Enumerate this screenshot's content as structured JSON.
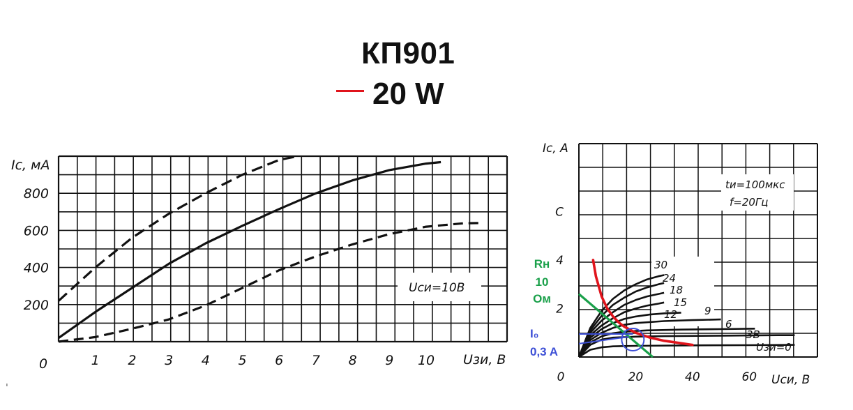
{
  "header": {
    "title": "КП901",
    "power_label": "20 W",
    "power_color": "#e0141c"
  },
  "stray_mark": "ˌ",
  "chart_data": [
    {
      "type": "line",
      "xlabel": "Uзи, B",
      "ylabel": "Iс, мA",
      "x_ticks": [
        "1",
        "2",
        "3",
        "4",
        "5",
        "6",
        "7",
        "8",
        "9",
        "10"
      ],
      "y_ticks": [
        "200",
        "400",
        "600",
        "800"
      ],
      "origin_label": "0",
      "xlim": [
        0,
        12.2
      ],
      "ylim": [
        0,
        1000
      ],
      "grid": true,
      "annotation": "Uси=10B",
      "series": [
        {
          "style": "dashed-long",
          "x": [
            0,
            1,
            2,
            3,
            4,
            5,
            6,
            6.5
          ],
          "y": [
            220,
            400,
            560,
            690,
            800,
            900,
            980,
            1000
          ]
        },
        {
          "style": "solid",
          "x": [
            0,
            1,
            2,
            3,
            4,
            5,
            6,
            7,
            8,
            9,
            10,
            10.4
          ],
          "y": [
            20,
            160,
            290,
            420,
            530,
            625,
            715,
            800,
            870,
            925,
            960,
            968
          ]
        },
        {
          "style": "dashed",
          "x": [
            0,
            1,
            2,
            3,
            4,
            5,
            6,
            7,
            8,
            9,
            10,
            11,
            11.5
          ],
          "y": [
            0,
            25,
            70,
            120,
            195,
            290,
            385,
            460,
            525,
            580,
            620,
            638,
            640
          ]
        }
      ]
    },
    {
      "type": "line",
      "xlabel": "Uси, B",
      "ylabel": "Iс, A",
      "x_ticks": [
        "20",
        "40",
        "60"
      ],
      "y_ticks": [
        "2",
        "4",
        "C"
      ],
      "origin_label": "0",
      "xlim": [
        0,
        84
      ],
      "ylim": [
        0,
        8.8
      ],
      "grid": true,
      "annotation_lines": [
        "tи=100мкс",
        "f=20Гц"
      ],
      "curve_labels": [
        "30",
        "24",
        "18",
        "15",
        "12",
        "9",
        "6",
        "3B",
        "Uзи=0"
      ],
      "series": [
        {
          "label": "30",
          "x": [
            0,
            4,
            8,
            12,
            16,
            20,
            24,
            28,
            30
          ],
          "y": [
            0,
            1.2,
            1.9,
            2.4,
            2.75,
            3.0,
            3.2,
            3.33,
            3.38
          ]
        },
        {
          "label": "24",
          "x": [
            0,
            4,
            8,
            12,
            16,
            20,
            24,
            28,
            30
          ],
          "y": [
            0,
            1.1,
            1.7,
            2.15,
            2.45,
            2.7,
            2.87,
            3.0,
            3.05
          ]
        },
        {
          "label": "18",
          "x": [
            0,
            4,
            8,
            12,
            16,
            20,
            24,
            28,
            30
          ],
          "y": [
            0,
            1.0,
            1.5,
            1.85,
            2.15,
            2.35,
            2.5,
            2.6,
            2.65
          ]
        },
        {
          "label": "15",
          "x": [
            0,
            4,
            8,
            12,
            16,
            20,
            24,
            28,
            30
          ],
          "y": [
            0,
            0.9,
            1.3,
            1.6,
            1.85,
            2.0,
            2.12,
            2.2,
            2.25
          ]
        },
        {
          "label": "12",
          "x": [
            0,
            4,
            8,
            12,
            16,
            20,
            25,
            30,
            36
          ],
          "y": [
            0,
            0.8,
            1.15,
            1.4,
            1.57,
            1.67,
            1.75,
            1.8,
            1.83
          ]
        },
        {
          "label": "9",
          "x": [
            0,
            4,
            8,
            12,
            16,
            20,
            30,
            40,
            50
          ],
          "y": [
            0,
            0.7,
            1.0,
            1.2,
            1.33,
            1.4,
            1.48,
            1.52,
            1.55
          ]
        },
        {
          "label": "6",
          "x": [
            0,
            4,
            8,
            12,
            16,
            24,
            36,
            50,
            62
          ],
          "y": [
            0,
            0.6,
            0.85,
            0.98,
            1.05,
            1.1,
            1.13,
            1.15,
            1.17
          ]
        },
        {
          "label": "3B",
          "x": [
            0,
            4,
            8,
            12,
            20,
            30,
            50,
            70,
            76
          ],
          "y": [
            0,
            0.5,
            0.72,
            0.8,
            0.84,
            0.86,
            0.88,
            0.9,
            0.9
          ]
        },
        {
          "label": "Uзи=0",
          "x": [
            0,
            4,
            8,
            12,
            20,
            40,
            60,
            76
          ],
          "y": [
            0,
            0.3,
            0.4,
            0.44,
            0.46,
            0.48,
            0.49,
            0.5
          ]
        }
      ],
      "overlays": {
        "power_hyperbola": {
          "color": "#e0141c",
          "x": [
            5,
            6,
            8,
            10,
            12,
            14,
            16,
            20,
            25,
            30,
            40
          ],
          "y": [
            4.0,
            3.33,
            2.5,
            2.0,
            1.67,
            1.43,
            1.25,
            1.0,
            0.8,
            0.67,
            0.5
          ]
        },
        "load_line": {
          "color": "#1aa04a",
          "label_lines": [
            "Rн",
            "10",
            "Ом"
          ],
          "x": [
            0,
            26
          ],
          "y": [
            2.6,
            0
          ]
        },
        "bias_point": {
          "color": "#3d4fd6",
          "label_lines": [
            "I₀",
            "0,3 A"
          ],
          "y_level": 0.95,
          "x_center": 19
        }
      }
    }
  ]
}
